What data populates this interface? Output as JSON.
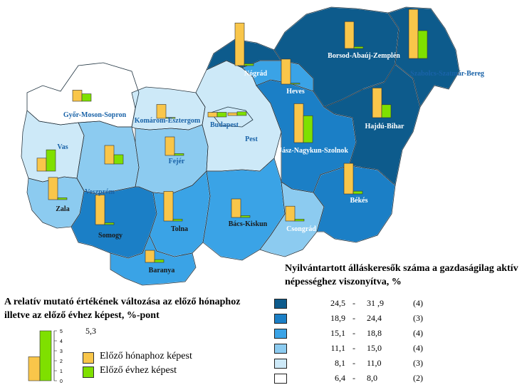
{
  "legend_class": {
    "title": "Nyilvántartott álláskeresők száma a gazdaságilag aktív népességhez viszonyítva, %",
    "classes": [
      {
        "lo": "24,5",
        "hi": "31 ,9",
        "count": "(4)",
        "color": "#0d5b8c"
      },
      {
        "lo": "18,9",
        "hi": "24,4",
        "count": "(3)",
        "color": "#1b7fc6"
      },
      {
        "lo": "15,1",
        "hi": "18,8",
        "count": "(4)",
        "color": "#3aa3e6"
      },
      {
        "lo": "11,1",
        "hi": "15,0",
        "count": "(4)",
        "color": "#8ccbf0"
      },
      {
        "lo": "8,1",
        "hi": "11,0",
        "count": "(3)",
        "color": "#cde9f8"
      },
      {
        "lo": "6,4",
        "hi": "8,0",
        "count": "(2)",
        "color": "#ffffff"
      }
    ]
  },
  "legend_bars": {
    "title": "A relatív mutató értékének változása az előző hónaphoz illetve az előző évhez képest, %-pont",
    "max_label": "5,3",
    "ticks": [
      "5",
      "4",
      "3",
      "2",
      "1",
      "0"
    ],
    "monthly_label": "Előző hónaphoz képest",
    "yearly_label": "Előző évhez képest",
    "monthly_color": "#f9c64a",
    "yearly_color": "#7fe000"
  },
  "counties": [
    {
      "name": "Győr-Moson-Sopron",
      "color": "#ffffff",
      "monthly": 1.2,
      "yearly": 0.8
    },
    {
      "name": "Vas",
      "color": "#cde9f8",
      "monthly": 1.4,
      "yearly": 2.3
    },
    {
      "name": "Zala",
      "color": "#8ccbf0",
      "monthly": 2.4,
      "yearly": 0.2
    },
    {
      "name": "Veszprém",
      "color": "#8ccbf0",
      "monthly": 2.0,
      "yearly": 1.0
    },
    {
      "name": "Komárom-Esztergom",
      "color": "#cde9f8",
      "monthly": 1.5,
      "yearly": 0.1
    },
    {
      "name": "Fejér",
      "color": "#8ccbf0",
      "monthly": 2.0,
      "yearly": 0.2
    },
    {
      "name": "Budapest",
      "color": "#ffffff",
      "monthly": 0.5,
      "yearly": 0.5
    },
    {
      "name": "Pest",
      "color": "#cde9f8",
      "monthly": 0.3,
      "yearly": 0.4
    },
    {
      "name": "Somogy",
      "color": "#1b7fc6",
      "monthly": 3.2,
      "yearly": 0.2
    },
    {
      "name": "Tolna",
      "color": "#3aa3e6",
      "monthly": 3.2,
      "yearly": 0.2
    },
    {
      "name": "Baranya",
      "color": "#3aa3e6",
      "monthly": 1.3,
      "yearly": 0.3
    },
    {
      "name": "Bács-Kiskun",
      "color": "#3aa3e6",
      "monthly": 2.0,
      "yearly": 0.2
    },
    {
      "name": "Csongrád",
      "color": "#8ccbf0",
      "monthly": 1.6,
      "yearly": 0.2
    },
    {
      "name": "Békés",
      "color": "#1b7fc6",
      "monthly": 3.3,
      "yearly": 0.3
    },
    {
      "name": "Jász-Nagykun-Szolnok",
      "color": "#1b7fc6",
      "monthly": 4.2,
      "yearly": 2.9
    },
    {
      "name": "Heves",
      "color": "#3aa3e6",
      "monthly": 2.7,
      "yearly": 0.1
    },
    {
      "name": "Nógrád",
      "color": "#0d5b8c",
      "monthly": 4.6,
      "yearly": 0.2
    },
    {
      "name": "Borsod-Abaúj-Zemplén",
      "color": "#0d5b8c",
      "monthly": 2.9,
      "yearly": 0.2
    },
    {
      "name": "Hajdú-Bihar",
      "color": "#0d5b8c",
      "monthly": 3.2,
      "yearly": 1.4
    },
    {
      "name": "Szabolcs-Szatmár-Bereg",
      "color": "#0d5b8c",
      "monthly": 5.3,
      "yearly": 3.0
    }
  ]
}
